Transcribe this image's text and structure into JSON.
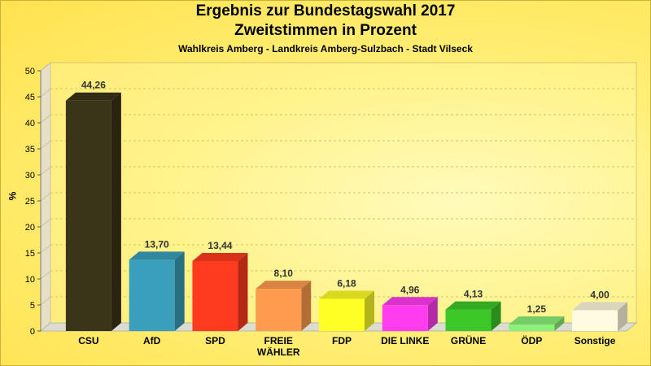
{
  "chart_data": {
    "type": "bar",
    "title": "Ergebnis zur Bundestagswahl 2017",
    "subtitle_line2": "Zweitstimmen in Prozent",
    "subtitle": "Wahlkreis Amberg - Landkreis Amberg-Sulzbach - Stadt Vilseck",
    "ylabel": "%",
    "xlabel": "",
    "ylim": [
      0,
      50
    ],
    "yticks": [
      0,
      5,
      10,
      15,
      20,
      25,
      30,
      35,
      40,
      45,
      50
    ],
    "grid": true,
    "categories": [
      "CSU",
      "AfD",
      "SPD",
      "FREIE WÄHLER",
      "FDP",
      "DIE LINKE",
      "GRÜNE",
      "ÖDP",
      "Sonstige"
    ],
    "category_lines": [
      [
        "CSU"
      ],
      [
        "AfD"
      ],
      [
        "SPD"
      ],
      [
        "FREIE",
        "WÄHLER"
      ],
      [
        "FDP"
      ],
      [
        "DIE LINKE"
      ],
      [
        "GRÜNE"
      ],
      [
        "ÖDP"
      ],
      [
        "Sonstige"
      ]
    ],
    "values": [
      44.26,
      13.7,
      13.44,
      8.1,
      6.18,
      4.96,
      4.13,
      1.25,
      4.0
    ],
    "value_labels": [
      "44,26",
      "13,70",
      "13,44",
      "8,10",
      "6,18",
      "4,96",
      "4,13",
      "1,25",
      "4,00"
    ],
    "colors": [
      "#3a3418",
      "#3a9fba",
      "#ff3b1f",
      "#ff9b4f",
      "#ffff26",
      "#ff3cf0",
      "#3cc828",
      "#8cf07a",
      "#fffbe0"
    ]
  }
}
